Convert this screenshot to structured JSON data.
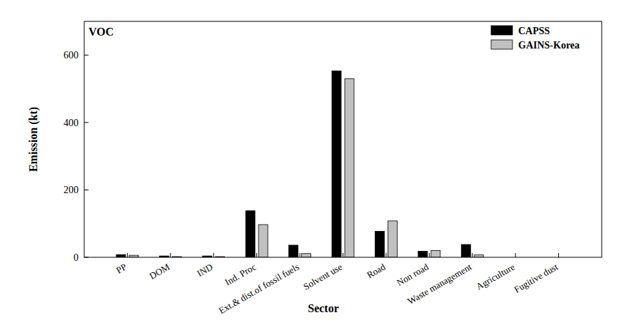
{
  "chart_data": {
    "type": "bar",
    "title": "VOC",
    "x_label": "Sector",
    "y_label": "Emission (kt)",
    "categories": [
      "PP",
      "DOM",
      "IND",
      "Ind. Proc",
      "Ext.& dist.of fossil fuels",
      "Solvent use",
      "Road",
      "Non road",
      "Waste management",
      "Agriculture",
      "Fugitive dust"
    ],
    "series": [
      {
        "name": "CAPSS",
        "color": "#000000",
        "values": [
          8,
          4,
          4,
          138,
          36,
          553,
          77,
          18,
          38,
          0,
          0
        ]
      },
      {
        "name": "GAINS-Korea",
        "color": "#c0c0c0",
        "values": [
          6,
          2,
          2,
          97,
          11,
          530,
          108,
          20,
          7,
          0,
          0
        ]
      }
    ],
    "ylim": [
      0,
      700
    ],
    "yticks": [
      0,
      200,
      400,
      600
    ],
    "grid": false,
    "legend": "upper right"
  }
}
